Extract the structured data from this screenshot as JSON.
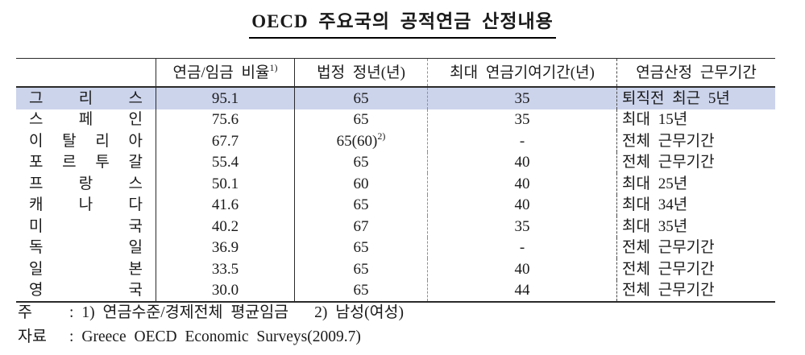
{
  "title": "OECD 주요국의 공적연금 산정내용",
  "table": {
    "highlight_color": "#ccd4ec",
    "headers": {
      "country": "",
      "ratio": "연금/임금 비율",
      "ratio_sup": "1)",
      "retire_age": "법정 정년(년)",
      "max_contrib": "최대 연금기여기간(년)",
      "period": "연금산정 근무기간"
    },
    "rows": [
      {
        "country": "그리스",
        "ratio": "95.1",
        "retire_age": "65",
        "max_contrib": "35",
        "period": "퇴직전 최근 5년"
      },
      {
        "country": "스페인",
        "ratio": "75.6",
        "retire_age": "65",
        "max_contrib": "35",
        "period": "최대 15년"
      },
      {
        "country": "이탈리아",
        "ratio": "67.7",
        "retire_age": "65(60)",
        "retire_age_sup": "2)",
        "max_contrib": "-",
        "period": "전체 근무기간"
      },
      {
        "country": "포르투갈",
        "ratio": "55.4",
        "retire_age": "65",
        "max_contrib": "40",
        "period": "전체 근무기간"
      },
      {
        "country": "프랑스",
        "ratio": "50.1",
        "retire_age": "60",
        "max_contrib": "40",
        "period": "최대 25년"
      },
      {
        "country": "캐나다",
        "ratio": "41.6",
        "retire_age": "65",
        "max_contrib": "40",
        "period": "최대 34년"
      },
      {
        "country": "미국",
        "ratio": "40.2",
        "retire_age": "67",
        "max_contrib": "35",
        "period": "최대 35년"
      },
      {
        "country": "독일",
        "ratio": "36.9",
        "retire_age": "65",
        "max_contrib": "-",
        "period": "전체 근무기간"
      },
      {
        "country": "일본",
        "ratio": "33.5",
        "retire_age": "65",
        "max_contrib": "40",
        "period": "전체 근무기간"
      },
      {
        "country": "영국",
        "ratio": "30.0",
        "retire_age": "65",
        "max_contrib": "44",
        "period": "전체 근무기간"
      }
    ]
  },
  "notes": {
    "note_label": "주",
    "note_colon": ":",
    "note1": "1) 연금수준/경제전체 평균임금",
    "note2": "2) 남성(여성)",
    "source_label": "자료",
    "source_colon": ":",
    "source_text": "Greece OECD Economic Surveys(2009.7)"
  }
}
